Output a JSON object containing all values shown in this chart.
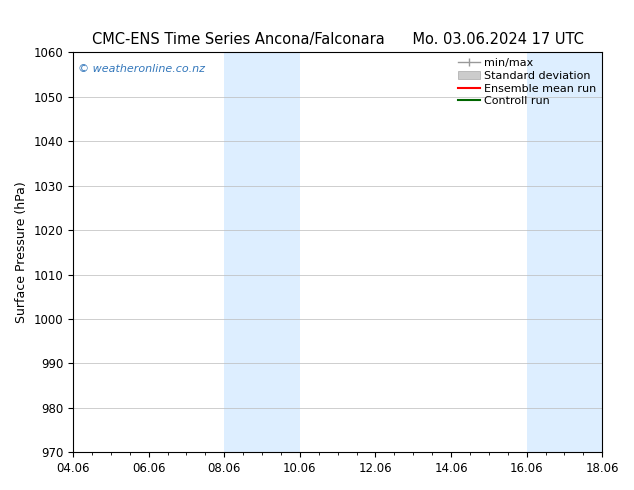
{
  "title_left": "CMC-ENS Time Series Ancona/Falconara",
  "title_right": "Mo. 03.06.2024 17 UTC",
  "ylabel": "Surface Pressure (hPa)",
  "ylim": [
    970,
    1060
  ],
  "yticks": [
    970,
    980,
    990,
    1000,
    1010,
    1020,
    1030,
    1040,
    1050,
    1060
  ],
  "xticks_labels": [
    "04.06",
    "06.06",
    "08.06",
    "10.06",
    "12.06",
    "14.06",
    "16.06",
    "18.06"
  ],
  "xtick_positions": [
    0,
    2,
    4,
    6,
    8,
    10,
    12,
    14
  ],
  "xlim": [
    0,
    14
  ],
  "shade_regions": [
    {
      "x_start": 4,
      "x_end": 6
    },
    {
      "x_start": 12,
      "x_end": 14
    }
  ],
  "shade_color": "#ddeeff",
  "watermark_text": "© weatheronline.co.nz",
  "watermark_color": "#3377bb",
  "background_color": "#ffffff",
  "title_fontsize": 10.5,
  "tick_fontsize": 8.5,
  "label_fontsize": 9,
  "legend_fontsize": 8
}
